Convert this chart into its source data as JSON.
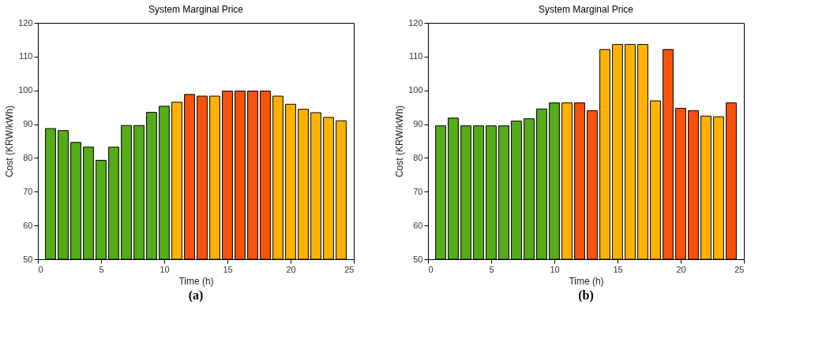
{
  "chart_data": [
    {
      "type": "bar",
      "title": "System Marginal Price",
      "xlabel": "Time (h)",
      "ylabel": "Cost (KRW/kWh)",
      "annotations": [
        "(a)"
      ],
      "x": [
        1,
        2,
        3,
        4,
        5,
        6,
        7,
        8,
        9,
        10,
        11,
        12,
        13,
        14,
        15,
        16,
        17,
        18,
        19,
        20,
        21,
        22,
        23,
        24
      ],
      "values": [
        88.7,
        88.1,
        84.6,
        83.2,
        79.3,
        83.2,
        89.6,
        89.6,
        93.5,
        95.3,
        96.5,
        98.8,
        98.3,
        98.3,
        99.8,
        99.8,
        99.8,
        99.8,
        98.3,
        95.9,
        94.4,
        93.4,
        92.0,
        91.0
      ],
      "colors": [
        "#56ab19",
        "#56ab19",
        "#56ab19",
        "#56ab19",
        "#56ab19",
        "#56ab19",
        "#56ab19",
        "#56ab19",
        "#56ab19",
        "#56ab19",
        "#ffb300",
        "#f9520c",
        "#f9520c",
        "#ffb300",
        "#f9520c",
        "#f9520c",
        "#f9520c",
        "#f9520c",
        "#ffb300",
        "#ffb300",
        "#ffb300",
        "#ffb300",
        "#ffb300",
        "#ffb300"
      ],
      "xlim": [
        0,
        25
      ],
      "xticks": [
        0,
        5,
        10,
        15,
        20,
        25
      ],
      "ylim": [
        50,
        120
      ],
      "yticks": [
        50,
        60,
        70,
        80,
        90,
        100,
        110,
        120
      ],
      "grid": false
    },
    {
      "type": "bar",
      "title": "System Marginal Price",
      "xlabel": "Time (h)",
      "ylabel": "Cost (KRW/kWh)",
      "annotations": [
        "(b)"
      ],
      "x": [
        1,
        2,
        3,
        4,
        5,
        6,
        7,
        8,
        9,
        10,
        11,
        12,
        13,
        14,
        15,
        16,
        17,
        18,
        19,
        20,
        21,
        22,
        23,
        24
      ],
      "values": [
        89.5,
        91.8,
        89.5,
        89.5,
        89.5,
        89.5,
        90.9,
        91.6,
        94.5,
        96.3,
        96.3,
        96.3,
        94.0,
        112.1,
        113.6,
        113.6,
        113.6,
        96.9,
        112.1,
        94.7,
        94.0,
        92.4,
        92.2,
        96.3
      ],
      "colors": [
        "#56ab19",
        "#56ab19",
        "#56ab19",
        "#56ab19",
        "#56ab19",
        "#56ab19",
        "#56ab19",
        "#56ab19",
        "#56ab19",
        "#56ab19",
        "#ffb300",
        "#f9520c",
        "#f9520c",
        "#ffb300",
        "#ffb300",
        "#ffb300",
        "#ffb300",
        "#ffb300",
        "#f9520c",
        "#f9520c",
        "#f9520c",
        "#ffb300",
        "#ffb300",
        "#f9520c"
      ],
      "xlim": [
        0,
        25
      ],
      "xticks": [
        0,
        5,
        10,
        15,
        20,
        25
      ],
      "ylim": [
        50,
        120
      ],
      "yticks": [
        50,
        60,
        70,
        80,
        90,
        100,
        110,
        120
      ],
      "grid": false
    }
  ]
}
